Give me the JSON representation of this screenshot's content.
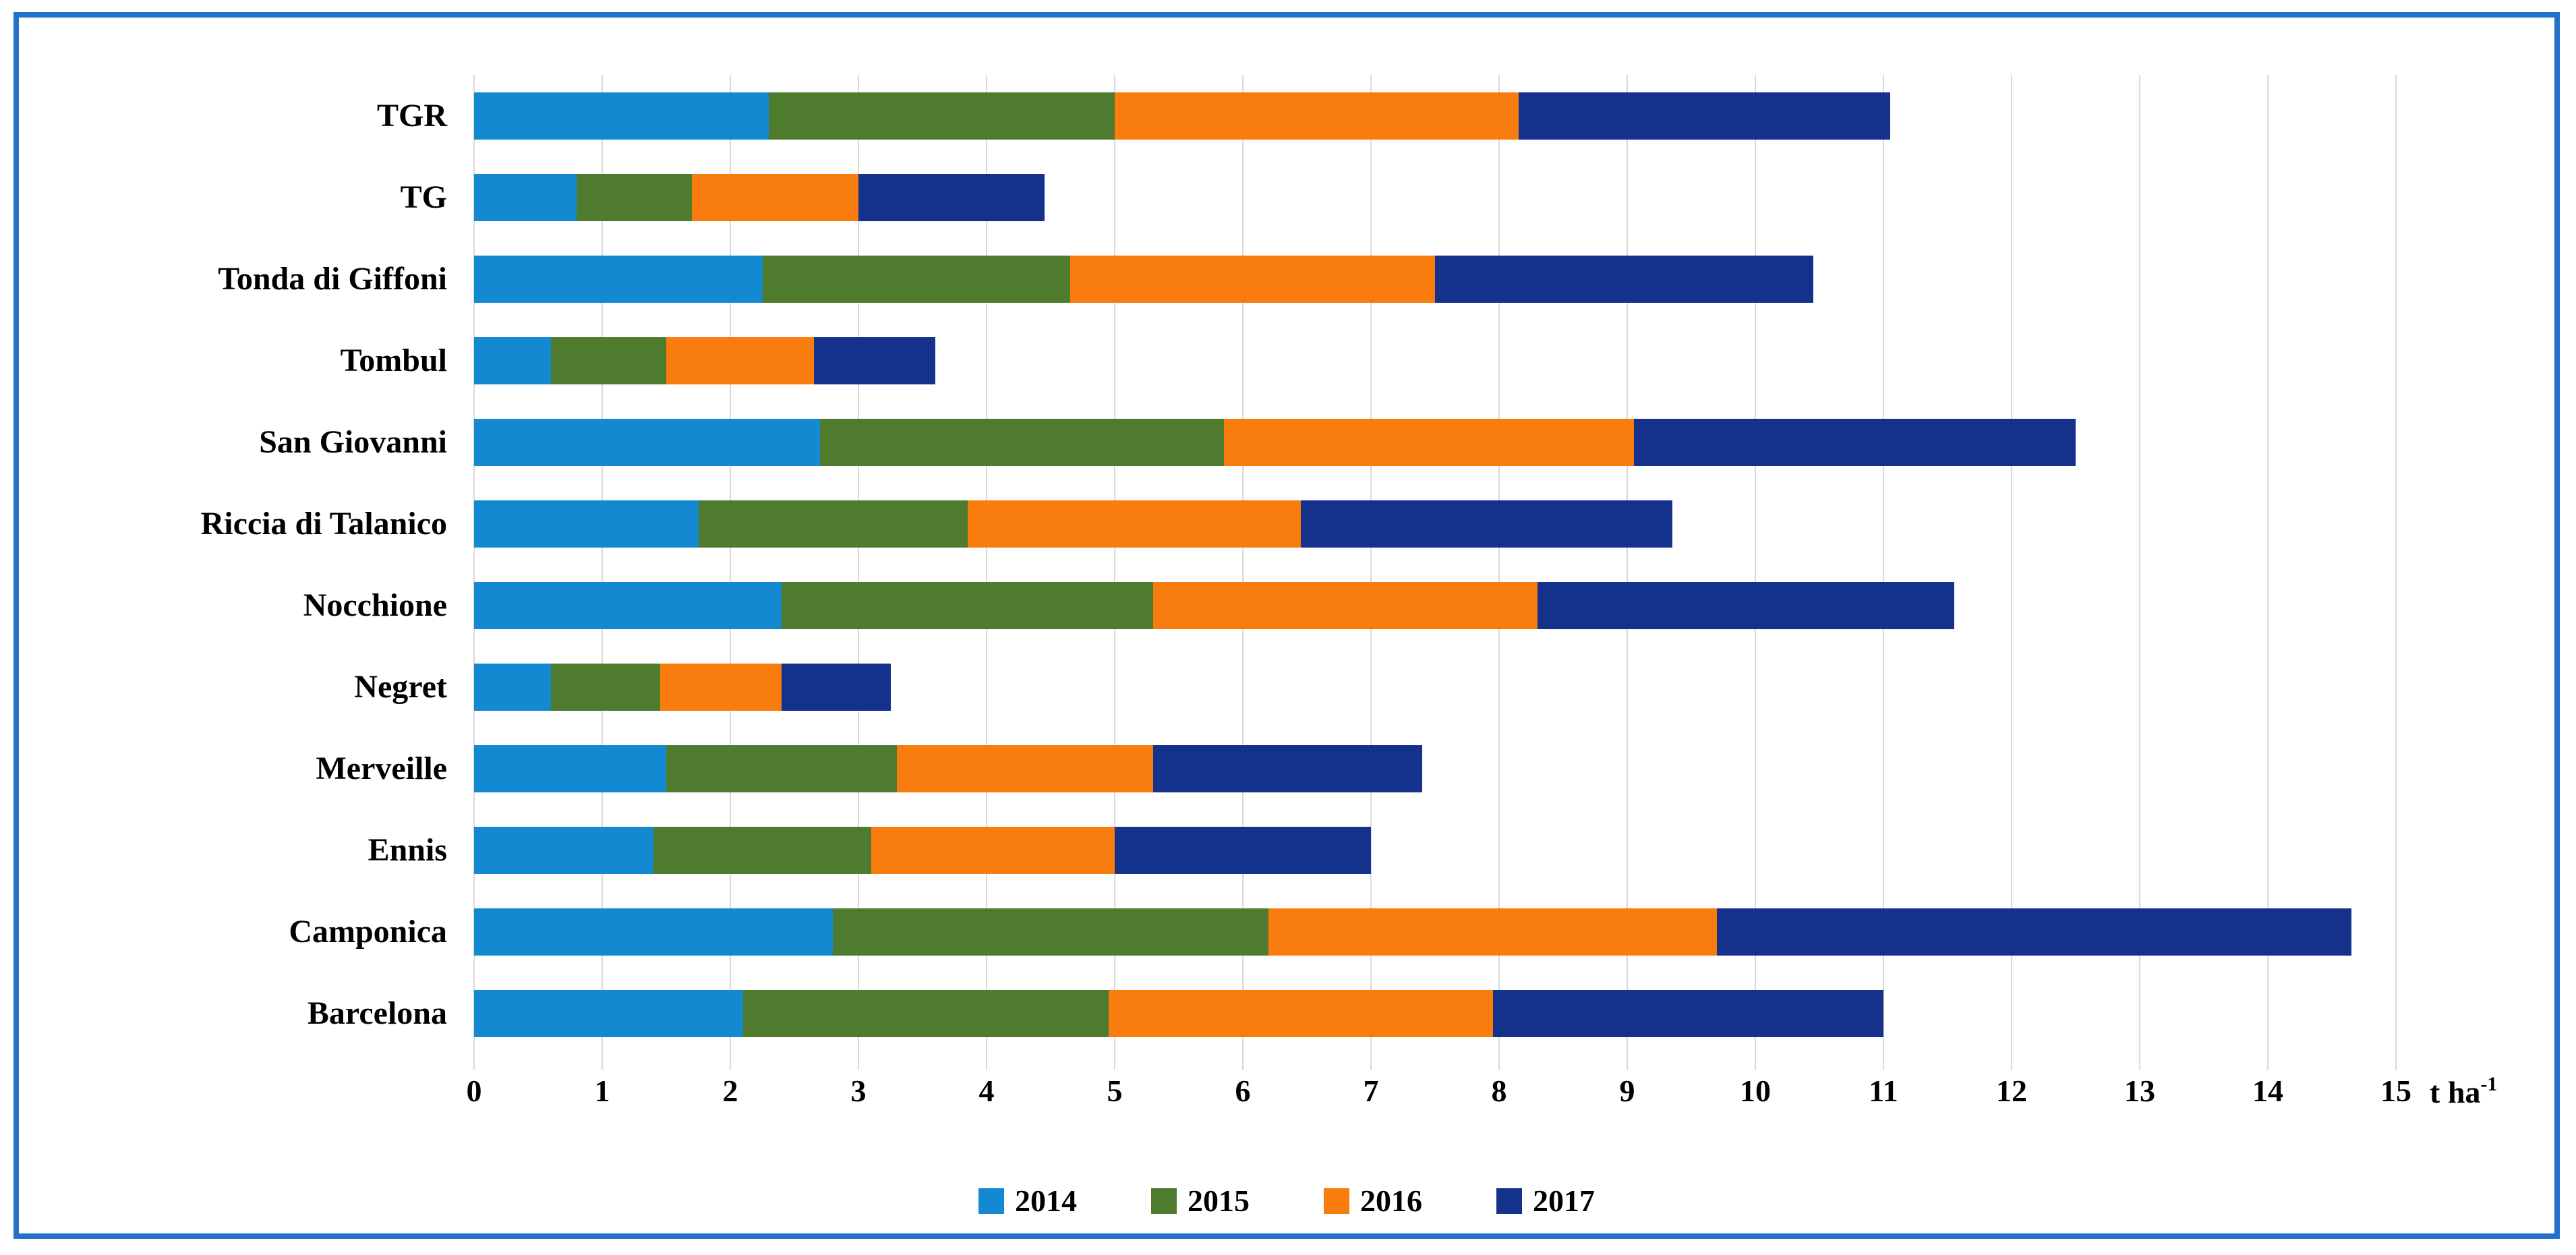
{
  "figure": {
    "border_color": "#2471C8",
    "background": "#FFFFFF",
    "gridline_color": "#D9D9D9"
  },
  "chart_data": {
    "type": "bar",
    "orientation": "horizontal",
    "stacked": true,
    "title": "",
    "xlabel_text": "t ha",
    "xlabel_sup": "-1",
    "xlim": [
      0,
      15
    ],
    "x_ticks": [
      0,
      1,
      2,
      3,
      4,
      5,
      6,
      7,
      8,
      9,
      10,
      11,
      12,
      13,
      14,
      15
    ],
    "grid": "vertical",
    "legend_position": "bottom",
    "categories": [
      "TGR",
      "TG",
      "Tonda di Giffoni",
      "Tombul",
      "San Giovanni",
      "Riccia di Talanico",
      "Nocchione",
      "Negret",
      "Merveille",
      "Ennis",
      "Camponica",
      "Barcelona"
    ],
    "series": [
      {
        "name": "2014",
        "color": "#1389D2",
        "values": [
          2.3,
          0.8,
          2.25,
          0.6,
          2.7,
          1.75,
          2.4,
          0.6,
          1.5,
          1.4,
          2.8,
          2.1
        ]
      },
      {
        "name": "2015",
        "color": "#4E7B2D",
        "values": [
          2.7,
          0.9,
          2.4,
          0.9,
          3.15,
          2.1,
          2.9,
          0.85,
          1.8,
          1.7,
          3.4,
          2.85
        ]
      },
      {
        "name": "2016",
        "color": "#F87D0E",
        "values": [
          3.15,
          1.3,
          2.85,
          1.15,
          3.2,
          2.6,
          3.0,
          0.95,
          2.0,
          1.9,
          3.5,
          3.0
        ]
      },
      {
        "name": "2017",
        "color": "#14318C",
        "values": [
          2.9,
          1.45,
          2.95,
          0.95,
          3.45,
          2.9,
          3.25,
          0.85,
          2.1,
          2.0,
          4.95,
          3.05
        ]
      }
    ],
    "totals": [
      11.05,
      4.45,
      10.45,
      3.6,
      12.5,
      9.35,
      11.55,
      3.25,
      7.4,
      7.0,
      14.65,
      11.0
    ]
  }
}
